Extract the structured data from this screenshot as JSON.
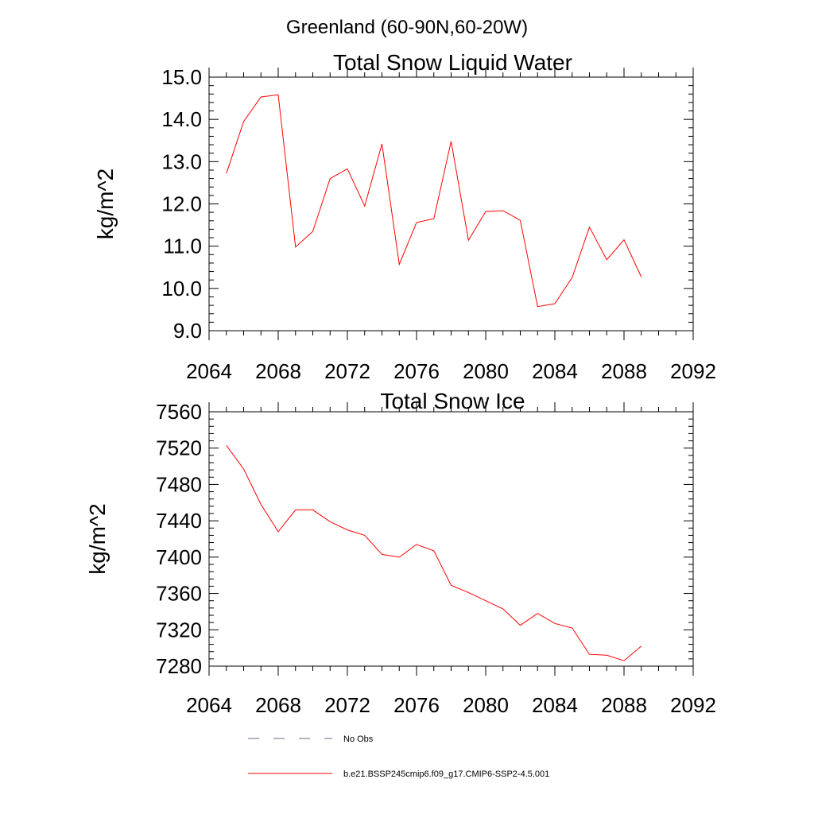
{
  "suptitle": "Greenland (60-90N,60-20W)",
  "chart_data": [
    {
      "type": "line",
      "title": "Total Snow Liquid Water",
      "xlabel": "",
      "ylabel": "kg/m^2",
      "xlim": [
        2064,
        2092
      ],
      "ylim": [
        9.0,
        15.0
      ],
      "x_ticks": [
        2064,
        2068,
        2072,
        2076,
        2080,
        2084,
        2088,
        2092
      ],
      "x_tick_labels": [
        "2064",
        "2068",
        "2072",
        "2076",
        "2080",
        "2084",
        "2088",
        "2092"
      ],
      "y_ticks": [
        9,
        10,
        11,
        12,
        13,
        14,
        15
      ],
      "y_tick_labels": [
        "9.0",
        "10.0",
        "11.0",
        "12.0",
        "13.0",
        "14.0",
        "15.0"
      ],
      "grid": false,
      "series": [
        {
          "name": "b.e21.BSSP245cmip6.f09_g17.CMIP6-SSP2-4.5.001",
          "color": "#ff0000",
          "x": [
            2065,
            2066,
            2067,
            2068,
            2069,
            2070,
            2071,
            2072,
            2073,
            2074,
            2075,
            2076,
            2077,
            2078,
            2079,
            2080,
            2081,
            2082,
            2083,
            2084,
            2085,
            2086,
            2087,
            2088,
            2089
          ],
          "y": [
            12.72,
            13.95,
            14.53,
            14.58,
            10.98,
            11.35,
            12.6,
            12.83,
            11.95,
            13.42,
            10.57,
            11.56,
            11.65,
            13.48,
            11.14,
            11.82,
            11.84,
            11.61,
            9.57,
            9.64,
            10.26,
            11.45,
            10.68,
            11.15,
            10.27
          ]
        }
      ]
    },
    {
      "type": "line",
      "title": "Total Snow Ice",
      "xlabel": "",
      "ylabel": "kg/m^2",
      "xlim": [
        2064,
        2092
      ],
      "ylim": [
        7280,
        7560
      ],
      "x_ticks": [
        2064,
        2068,
        2072,
        2076,
        2080,
        2084,
        2088,
        2092
      ],
      "x_tick_labels": [
        "2064",
        "2068",
        "2072",
        "2076",
        "2080",
        "2084",
        "2088",
        "2092"
      ],
      "y_ticks": [
        7280,
        7320,
        7360,
        7400,
        7440,
        7480,
        7520,
        7560
      ],
      "y_tick_labels": [
        "7280",
        "7320",
        "7360",
        "7400",
        "7440",
        "7480",
        "7520",
        "7560"
      ],
      "grid": false,
      "series": [
        {
          "name": "b.e21.BSSP245cmip6.f09_g17.CMIP6-SSP2-4.5.001",
          "color": "#ff0000",
          "x": [
            2065,
            2066,
            2067,
            2068,
            2069,
            2070,
            2071,
            2072,
            2073,
            2074,
            2075,
            2076,
            2077,
            2078,
            2079,
            2080,
            2081,
            2082,
            2083,
            2084,
            2085,
            2086,
            2087,
            2088,
            2089
          ],
          "y": [
            7523,
            7497,
            7458,
            7428,
            7452,
            7452,
            7439,
            7430,
            7424,
            7403,
            7400,
            7414,
            7407,
            7369,
            7361,
            7352,
            7343,
            7325,
            7338,
            7327,
            7322,
            7293,
            7292,
            7286,
            7302
          ]
        }
      ]
    }
  ],
  "legend": {
    "placement": "bottom",
    "entries": [
      {
        "label": "No Obs",
        "style": "dashed",
        "color": "#6a6a8a"
      },
      {
        "label": "b.e21.BSSP245cmip6.f09_g17.CMIP6-SSP2-4.5.001",
        "style": "solid",
        "color": "#ff0000"
      }
    ]
  }
}
